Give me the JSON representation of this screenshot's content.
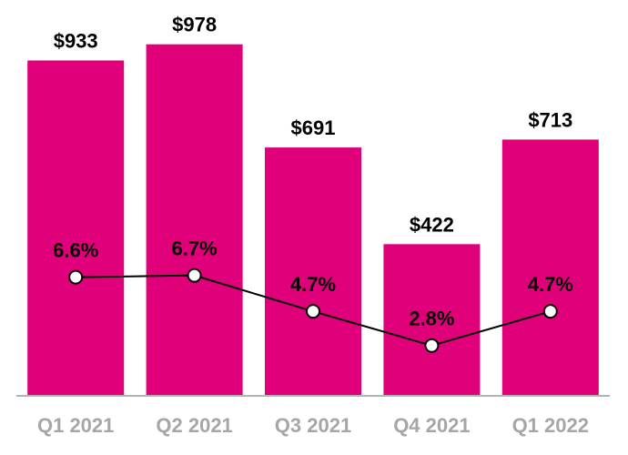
{
  "chart_data": {
    "type": "bar",
    "categories": [
      "Q1 2021",
      "Q2 2021",
      "Q3 2021",
      "Q4 2021",
      "Q1 2022"
    ],
    "series": [
      {
        "type": "bar",
        "values": [
          933,
          978,
          691,
          422,
          713
        ],
        "value_labels": [
          "$933",
          "$978",
          "$691",
          "$422",
          "$713"
        ],
        "color": "#e0007a"
      },
      {
        "type": "line",
        "values": [
          6.6,
          6.7,
          4.7,
          2.8,
          4.7
        ],
        "value_labels": [
          "6.6%",
          "6.7%",
          "4.7%",
          "2.8%",
          "4.7%"
        ],
        "color": "#000000",
        "marker_fill": "#ffffff"
      }
    ],
    "ylim": [
      0,
      1000
    ],
    "line_ylim": [
      0,
      20
    ],
    "grid": false,
    "legend": "none",
    "colors": {
      "bar": "#e0007a",
      "axis": "#b3b3b3",
      "tick_label": "#a6a6a6",
      "text": "#000000"
    }
  }
}
